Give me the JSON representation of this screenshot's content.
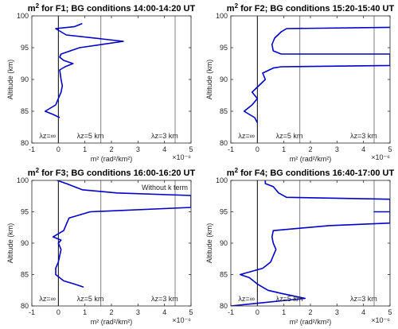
{
  "chart_data": [
    {
      "type": "line",
      "title": "m² for F1; BG conditions 14:00-14:20 UT",
      "title_base": "m",
      "title_sup": "2",
      "title_rest": " for F1; BG conditions 14:00-14:20 UT",
      "ylabel": "Altitude (km)",
      "xlabel": "m² (rad²/km²)",
      "exponent_label": "×10⁻⁶",
      "xlim": [
        -1,
        5
      ],
      "ylim": [
        80,
        100
      ],
      "xticks": [
        "-1",
        "0",
        "1",
        "2",
        "3",
        "4",
        "5"
      ],
      "yticks": [
        "80",
        "85",
        "90",
        "95",
        "100"
      ],
      "reference_lines": [
        {
          "x": 0,
          "label": "λz=∞",
          "color": "#000000"
        },
        {
          "x": 1.6,
          "label": "λz=5 km",
          "color": "#808080"
        },
        {
          "x": 4.4,
          "label": "λz=3 km",
          "color": "#808080"
        }
      ],
      "series": [
        {
          "color": "#0000cc",
          "points": [
            [
              0.05,
              84.0
            ],
            [
              -0.2,
              84.5
            ],
            [
              -0.5,
              85.0
            ],
            [
              -0.1,
              86.0
            ],
            [
              0.0,
              87.0
            ],
            [
              0.1,
              88.0
            ],
            [
              0.15,
              89.0
            ],
            [
              0.1,
              90.0
            ],
            [
              0.05,
              91.5
            ],
            [
              0.25,
              92.0
            ],
            [
              0.55,
              92.5
            ],
            [
              0.2,
              93.0
            ],
            [
              0.05,
              93.5
            ],
            [
              0.1,
              94.0
            ],
            [
              0.8,
              95.0
            ],
            [
              2.45,
              96.0
            ],
            [
              0.3,
              97.0
            ],
            [
              -0.1,
              98.0
            ],
            [
              0.6,
              98.3
            ],
            [
              0.9,
              98.8
            ]
          ]
        }
      ]
    },
    {
      "type": "line",
      "title": "m² for F2; BG conditions 15:20-15:40 UT",
      "title_base": "m",
      "title_sup": "2",
      "title_rest": " for F2; BG conditions 15:20-15:40 UT",
      "ylabel": "Altitude (km)",
      "xlabel": "m² (rad²/km²)",
      "exponent_label": "×10⁻⁶",
      "xlim": [
        -1,
        5
      ],
      "ylim": [
        80,
        100
      ],
      "xticks": [
        "-1",
        "0",
        "1",
        "2",
        "3",
        "4",
        "5"
      ],
      "yticks": [
        "80",
        "85",
        "90",
        "95",
        "100"
      ],
      "reference_lines": [
        {
          "x": 0,
          "label": "λz=∞",
          "color": "#000000"
        },
        {
          "x": 1.6,
          "label": "λz=5 km",
          "color": "#808080"
        },
        {
          "x": 4.4,
          "label": "λz=3 km",
          "color": "#808080"
        }
      ],
      "series": [
        {
          "color": "#0000cc",
          "points": [
            [
              0.0,
              83.2
            ],
            [
              -0.1,
              84.0
            ],
            [
              -0.3,
              84.5
            ],
            [
              -0.5,
              85.0
            ],
            [
              -0.2,
              86.0
            ],
            [
              0.0,
              87.0
            ],
            [
              -0.2,
              88.0
            ],
            [
              0.05,
              89.0
            ],
            [
              0.3,
              90.0
            ],
            [
              0.2,
              91.0
            ],
            [
              0.6,
              91.8
            ],
            [
              0.9,
              92.0
            ],
            [
              5.0,
              92.2
            ],
            [
              5.0,
              94.0
            ],
            [
              0.9,
              94.0
            ],
            [
              0.6,
              94.5
            ],
            [
              0.55,
              95.5
            ],
            [
              0.65,
              96.5
            ],
            [
              0.9,
              97.5
            ],
            [
              1.1,
              98.0
            ],
            [
              5.0,
              98.2
            ]
          ]
        }
      ]
    },
    {
      "type": "line",
      "title": "m² for F3; BG conditions 16:00-16:20 UT",
      "title_base": "m",
      "title_sup": "2",
      "title_rest": " for F3; BG conditions 16:00-16:20 UT",
      "ylabel": "Altitude (km)",
      "xlabel": "m² (rad²/km²)",
      "exponent_label": "×10⁻⁶",
      "xlim": [
        -1,
        5
      ],
      "ylim": [
        80,
        100
      ],
      "xticks": [
        "-1",
        "0",
        "1",
        "2",
        "3",
        "4",
        "5"
      ],
      "yticks": [
        "80",
        "85",
        "90",
        "95",
        "100"
      ],
      "annotation": "Without k term",
      "reference_lines": [
        {
          "x": 0,
          "label": "λz=∞",
          "color": "#000000"
        },
        {
          "x": 1.6,
          "label": "λz=5 km",
          "color": "#808080"
        },
        {
          "x": 4.4,
          "label": "λz=3 km",
          "color": "#808080"
        }
      ],
      "series": [
        {
          "color": "#0000cc",
          "points": [
            [
              0.95,
              83.0
            ],
            [
              0.6,
              83.5
            ],
            [
              0.2,
              84.0
            ],
            [
              -0.1,
              85.0
            ],
            [
              -0.1,
              86.0
            ],
            [
              0.0,
              87.0
            ],
            [
              0.05,
              88.0
            ],
            [
              0.1,
              89.0
            ],
            [
              0.0,
              90.0
            ],
            [
              0.1,
              90.5
            ],
            [
              -0.2,
              91.0
            ],
            [
              0.2,
              92.0
            ],
            [
              0.3,
              93.0
            ],
            [
              0.4,
              94.0
            ],
            [
              1.2,
              95.0
            ],
            [
              5.0,
              95.7
            ],
            [
              5.0,
              97.6
            ],
            [
              2.2,
              98.0
            ],
            [
              0.9,
              98.5
            ],
            [
              0.3,
              99.5
            ],
            [
              -0.05,
              100.0
            ]
          ]
        }
      ]
    },
    {
      "type": "line",
      "title": "m² for F4; BG conditions 16:40-17:00 UT",
      "title_base": "m",
      "title_sup": "2",
      "title_rest": " for F4; BG conditions 16:40-17:00 UT",
      "ylabel": "Altitude (km)",
      "xlabel": "m² (rad²/km²)",
      "exponent_label": "×10⁻⁶",
      "xlim": [
        -1,
        5
      ],
      "ylim": [
        80,
        100
      ],
      "xticks": [
        "-1",
        "0",
        "1",
        "2",
        "3",
        "4",
        "5"
      ],
      "yticks": [
        "80",
        "85",
        "90",
        "95",
        "100"
      ],
      "reference_lines": [
        {
          "x": 0,
          "label": "λz=∞",
          "color": "#000000"
        },
        {
          "x": 1.6,
          "label": "λz=5 km",
          "color": "#808080"
        },
        {
          "x": 4.4,
          "label": "λz=3 km",
          "color": "#808080"
        }
      ],
      "series": [
        {
          "color": "#0000cc",
          "points": [
            [
              -1.0,
              80.0
            ],
            [
              1.8,
              81.2
            ],
            [
              0.9,
              82.0
            ],
            [
              0.4,
              82.5
            ],
            [
              0.0,
              83.5
            ],
            [
              -0.3,
              84.5
            ],
            [
              -0.65,
              85.0
            ],
            [
              0.2,
              86.0
            ],
            [
              0.5,
              87.0
            ],
            [
              0.6,
              88.0
            ],
            [
              0.7,
              89.0
            ],
            [
              0.6,
              90.0
            ],
            [
              0.55,
              91.0
            ],
            [
              0.6,
              92.0
            ],
            [
              2.7,
              92.8
            ],
            [
              5.0,
              93.2
            ],
            [
              5.0,
              95.0
            ],
            [
              4.4,
              95.0
            ],
            [
              5.0,
              95.0
            ],
            [
              5.0,
              97.0
            ],
            [
              1.1,
              97.3
            ],
            [
              0.8,
              98.0
            ],
            [
              0.6,
              99.0
            ],
            [
              0.3,
              99.5
            ],
            [
              0.3,
              100.0
            ]
          ]
        }
      ]
    }
  ]
}
